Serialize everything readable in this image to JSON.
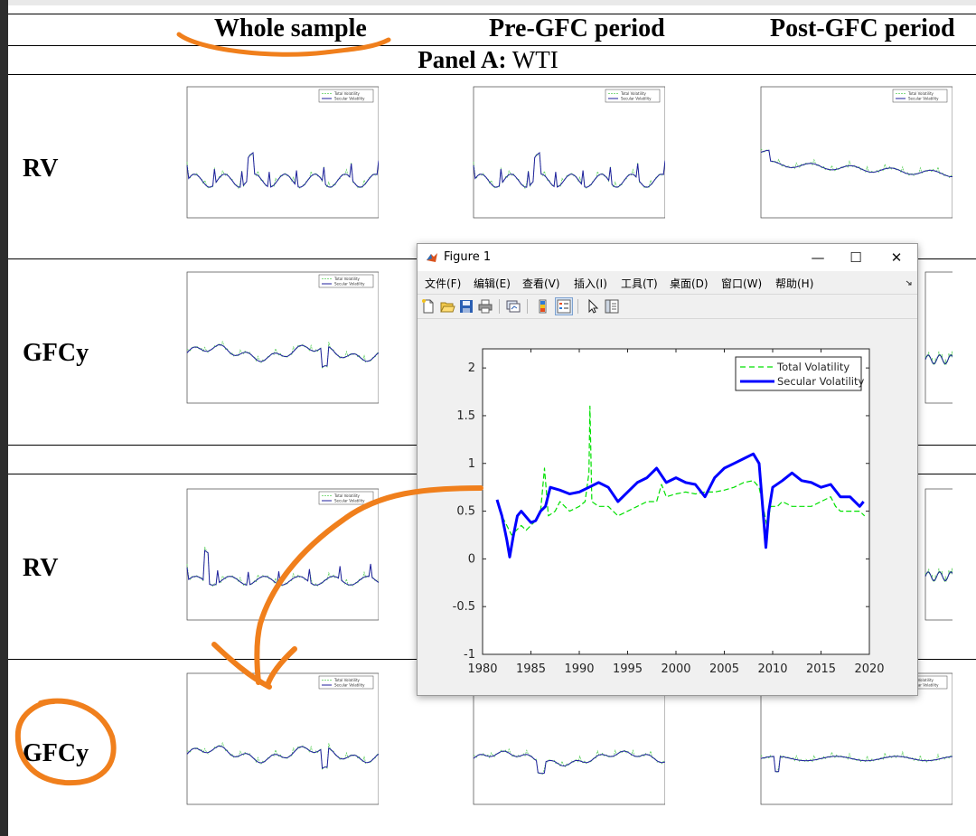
{
  "table": {
    "col_headers": [
      "Whole sample",
      "Pre-GFC period",
      "Post-GFC period"
    ],
    "panel_a_label": "Panel A:",
    "panel_a_value": "WTI",
    "row_labels": [
      "RV",
      "GFCy",
      "RV",
      "GFCy"
    ]
  },
  "thumbnail_legend": {
    "total": "Total Volatility",
    "secular": "Secular Volatility"
  },
  "figure_window": {
    "title": "Figure 1",
    "min_label": "—",
    "max_label": "☐",
    "close_label": "✕",
    "menu": [
      "文件(F)",
      "编辑(E)",
      "查看(V)",
      "插入(I)",
      "工具(T)",
      "桌面(D)",
      "窗口(W)",
      "帮助(H)"
    ],
    "toolbar_icons": [
      "new-figure-icon",
      "open-file-icon",
      "save-icon",
      "print-icon",
      "link-plot-icon",
      "colorbar-icon",
      "legend-icon",
      "pointer-icon",
      "property-editor-icon"
    ]
  },
  "colors": {
    "total": "#00e000",
    "secular": "#0000ff",
    "thumb_total": "#5ccf5c",
    "thumb_secular": "#1f1f9e",
    "annotation": "#f07f1c"
  },
  "chart_data": {
    "type": "line",
    "xlim": [
      1980,
      2020
    ],
    "ylim": [
      -1,
      2.2
    ],
    "x_ticks": [
      1980,
      1985,
      1990,
      1995,
      2000,
      2005,
      2010,
      2015,
      2020
    ],
    "y_ticks": [
      2,
      1.5,
      1,
      0.5,
      0,
      -0.5,
      -1
    ],
    "legend_position": "top-right",
    "series": [
      {
        "name": "Total Volatility",
        "style": "dashed",
        "x": [
          1981.5,
          1982,
          1982.5,
          1983,
          1983.5,
          1984,
          1984.5,
          1985,
          1985.5,
          1986,
          1986.4,
          1986.8,
          1987.5,
          1988,
          1989,
          1990,
          1990.6,
          1991,
          1991.1,
          1991.3,
          1992,
          1993,
          1994,
          1995,
          1996,
          1997,
          1998,
          1998.5,
          1999,
          2000,
          2001,
          2002,
          2003,
          2004,
          2005,
          2006,
          2007,
          2008,
          2008.6,
          2009,
          2009.4,
          2009.8,
          2010.5,
          2011,
          2012,
          2013,
          2014,
          2015,
          2016,
          2016.5,
          2017,
          2018,
          2019,
          2019.5
        ],
        "y": [
          0.6,
          0.45,
          0.35,
          0.25,
          0.3,
          0.35,
          0.3,
          0.35,
          0.4,
          0.5,
          0.95,
          0.45,
          0.5,
          0.6,
          0.5,
          0.55,
          0.6,
          0.9,
          1.6,
          0.6,
          0.55,
          0.55,
          0.45,
          0.5,
          0.55,
          0.6,
          0.6,
          0.78,
          0.65,
          0.68,
          0.7,
          0.68,
          0.7,
          0.7,
          0.72,
          0.75,
          0.8,
          0.82,
          0.75,
          0.55,
          0.35,
          0.55,
          0.55,
          0.6,
          0.55,
          0.55,
          0.55,
          0.6,
          0.65,
          0.55,
          0.5,
          0.5,
          0.5,
          0.45
        ]
      },
      {
        "name": "Secular Volatility",
        "style": "solid",
        "x": [
          1981.5,
          1982,
          1982.5,
          1982.8,
          1983.2,
          1983.6,
          1984,
          1985,
          1985.5,
          1986,
          1986.5,
          1987,
          1988,
          1989,
          1990,
          1991,
          1992,
          1993,
          1994,
          1995,
          1996,
          1997,
          1998,
          1999,
          2000,
          2001,
          2002,
          2003,
          2004,
          2005,
          2006,
          2007,
          2008,
          2008.6,
          2009,
          2009.3,
          2009.6,
          2010,
          2011,
          2012,
          2013,
          2014,
          2015,
          2016,
          2017,
          2018,
          2019,
          2019.4
        ],
        "y": [
          0.62,
          0.45,
          0.2,
          0.02,
          0.25,
          0.45,
          0.5,
          0.38,
          0.4,
          0.5,
          0.55,
          0.75,
          0.72,
          0.68,
          0.7,
          0.75,
          0.8,
          0.75,
          0.6,
          0.7,
          0.8,
          0.85,
          0.95,
          0.8,
          0.85,
          0.8,
          0.78,
          0.65,
          0.85,
          0.95,
          1.0,
          1.05,
          1.1,
          1.0,
          0.5,
          0.12,
          0.5,
          0.75,
          0.82,
          0.9,
          0.82,
          0.8,
          0.75,
          0.78,
          0.65,
          0.65,
          0.55,
          0.6
        ]
      }
    ]
  }
}
